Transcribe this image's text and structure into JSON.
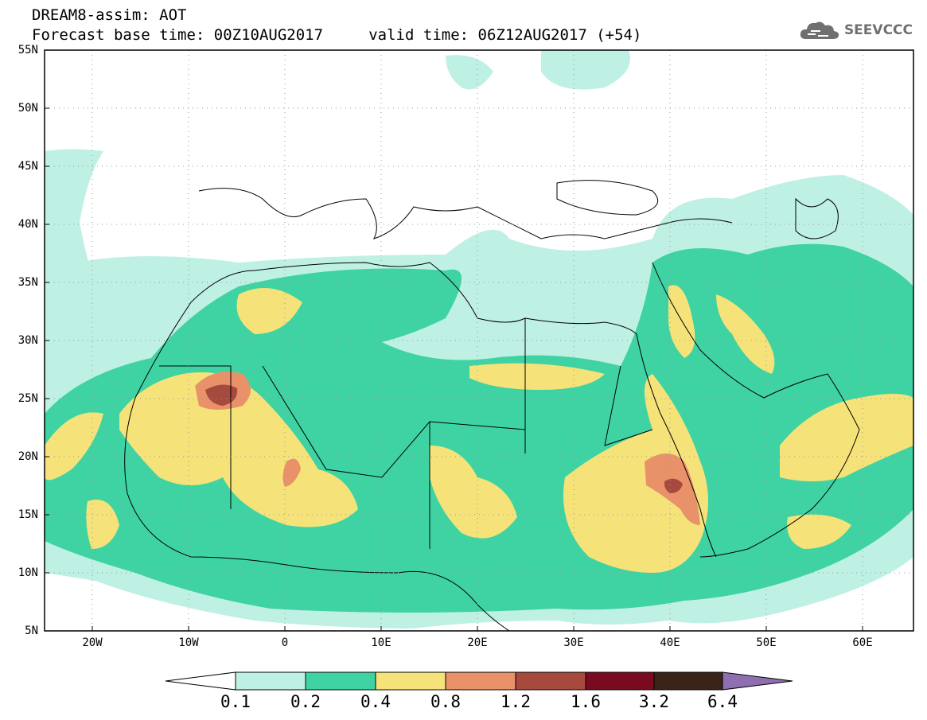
{
  "title": {
    "line1": "DREAM8-assim: AOT",
    "line2": "Forecast base time: 00Z10AUG2017     valid time: 06Z12AUG2017 (+54)"
  },
  "logo": {
    "text": "SEEVCCC",
    "icon": "cloud-icon"
  },
  "map": {
    "lat_labels": [
      "55N",
      "50N",
      "45N",
      "40N",
      "35N",
      "30N",
      "25N",
      "20N",
      "15N",
      "10N",
      "5N"
    ],
    "lon_labels": [
      "20W",
      "10W",
      "0",
      "10E",
      "20E",
      "30E",
      "40E",
      "50E",
      "60E"
    ]
  },
  "colorbar": {
    "labels": [
      "0.1",
      "0.2",
      "0.4",
      "0.8",
      "1.2",
      "1.6",
      "3.2",
      "6.4"
    ],
    "colors": [
      "#ffffff",
      "#bff0e4",
      "#3fd3a3",
      "#f5e37a",
      "#e9926a",
      "#a64a3d",
      "#7a0a1f",
      "#3a2418",
      "#8f6fb0"
    ]
  }
}
